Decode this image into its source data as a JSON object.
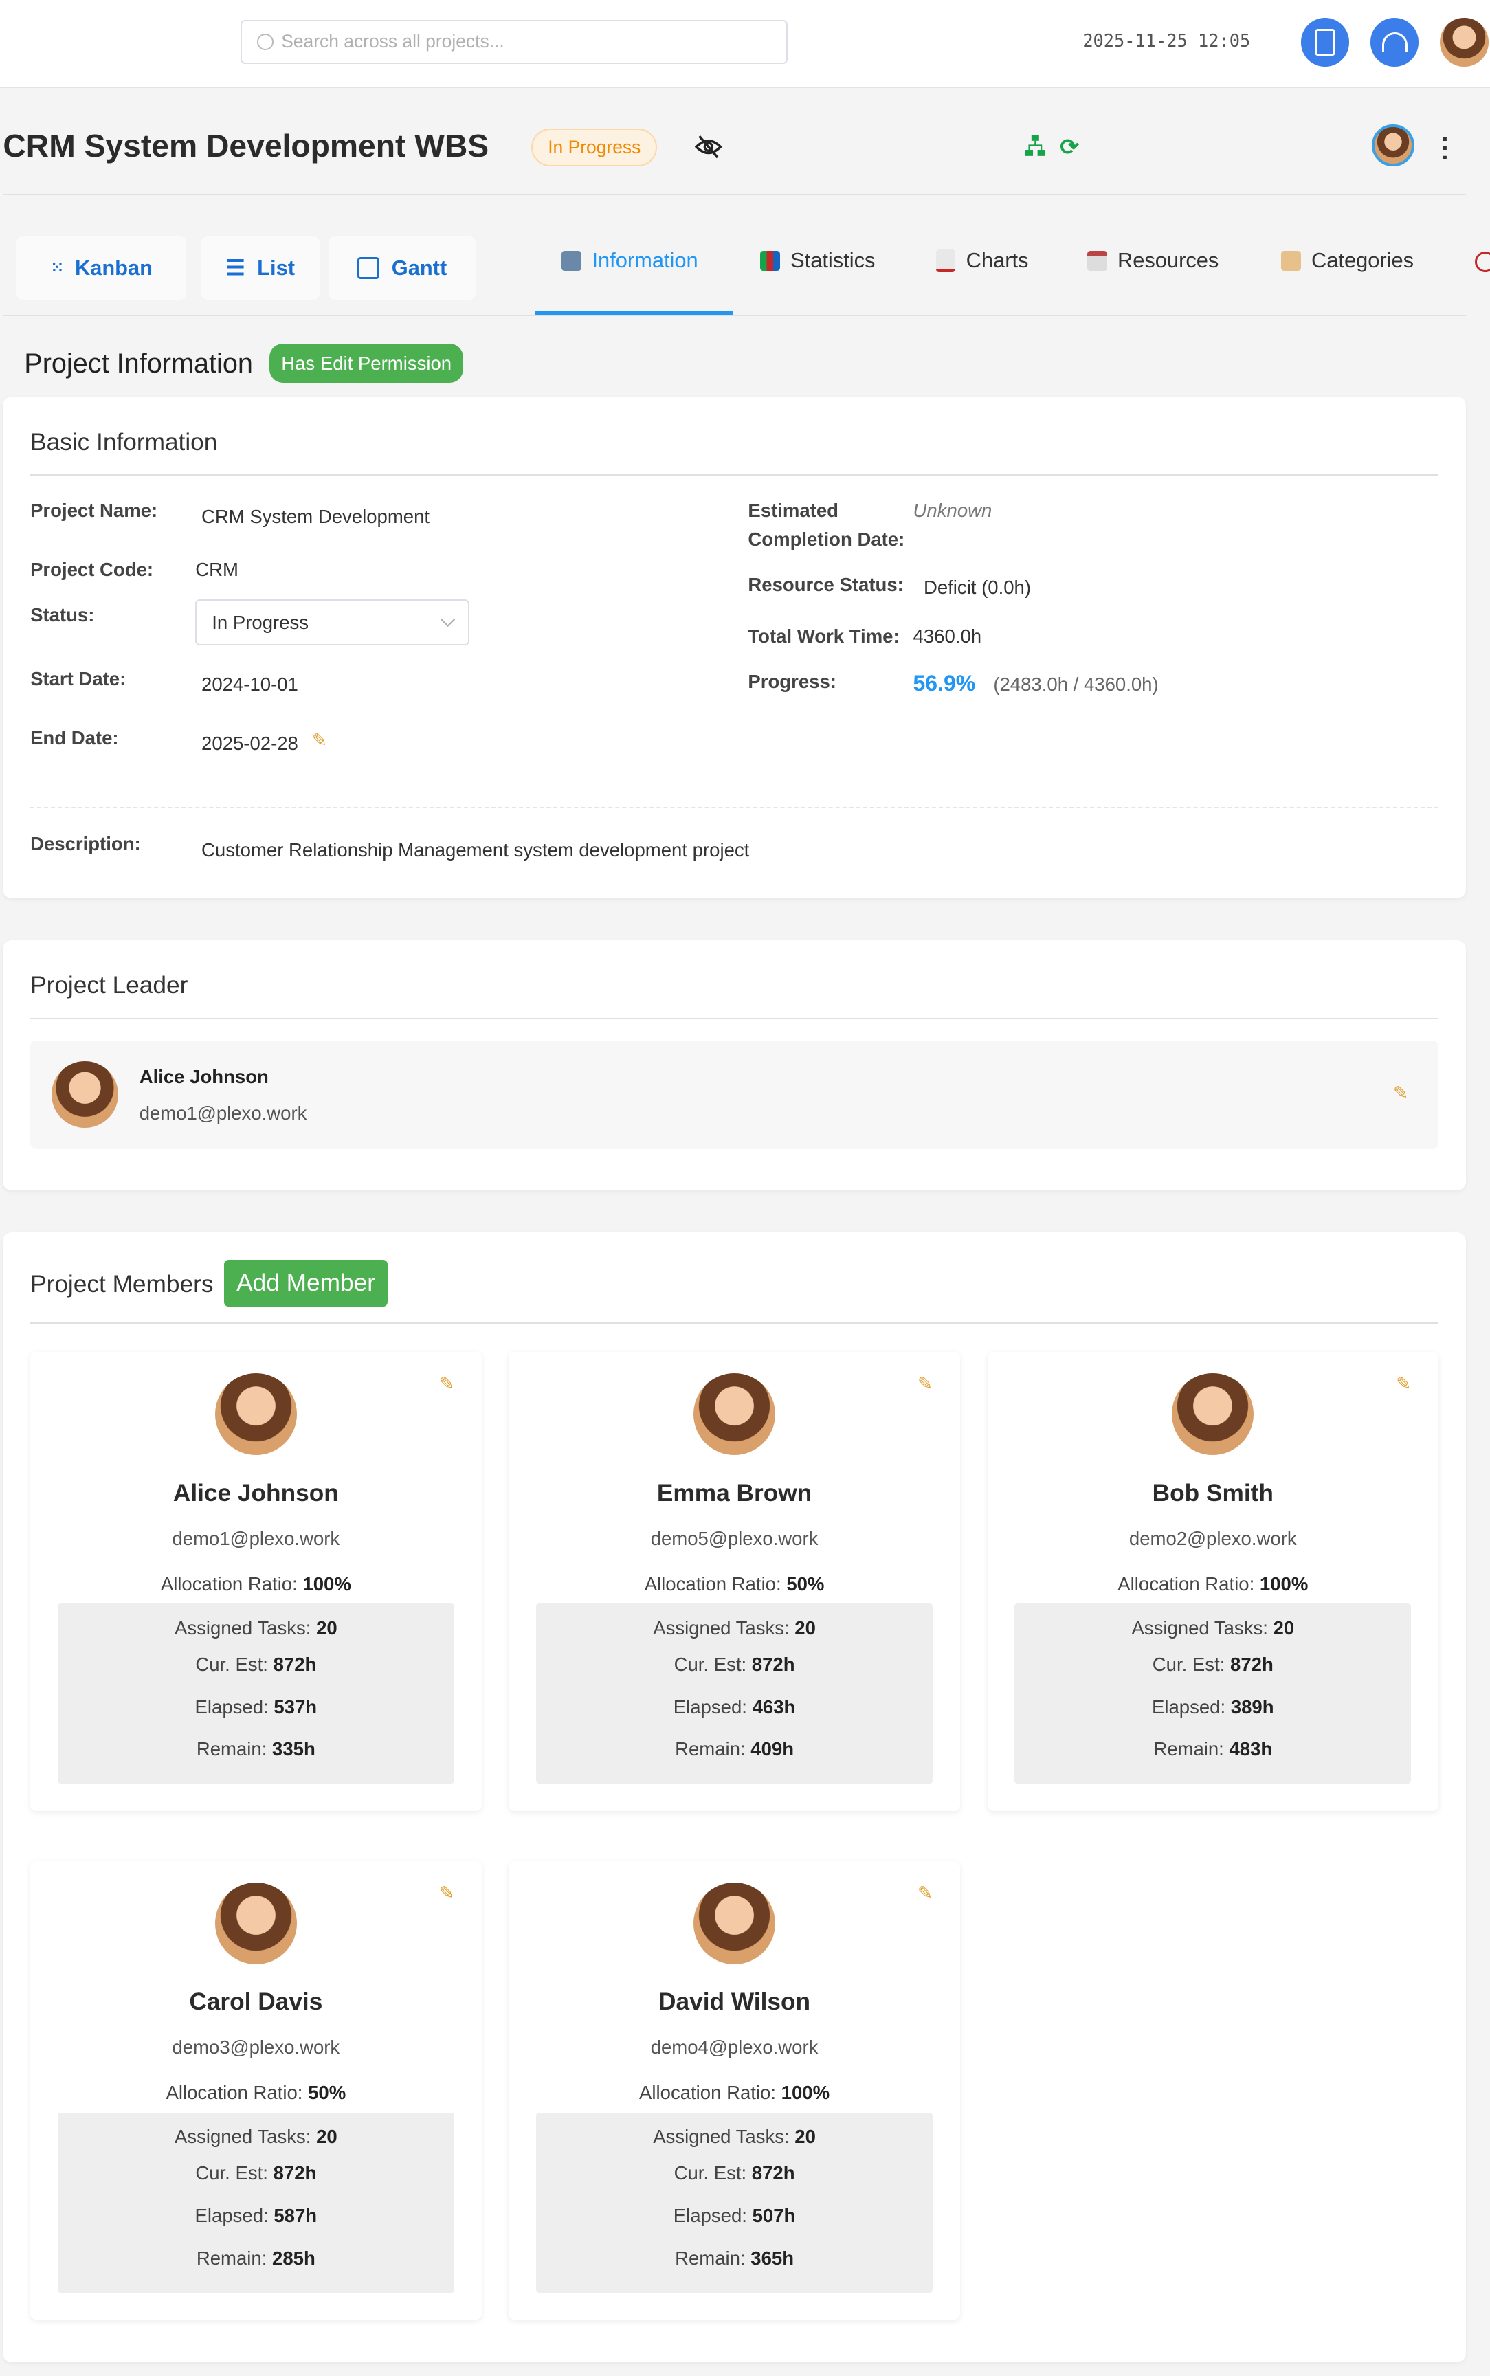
{
  "header": {
    "search_placeholder": "Search across all projects...",
    "datetime": "2025-11-25 12:05",
    "icons": [
      "search-icon",
      "book-icon",
      "headset-icon",
      "user-avatar"
    ],
    "accent_color": "#3b7de9"
  },
  "project": {
    "title": "CRM System Development WBS",
    "status_badge": "In Progress",
    "icons": [
      "eye-off-icon",
      "org-chart-icon",
      "refresh-icon",
      "leader-avatar",
      "more-vertical-icon"
    ]
  },
  "views": [
    {
      "label": "Kanban",
      "icon": "grid-dots-icon"
    },
    {
      "label": "List",
      "icon": "list-icon"
    },
    {
      "label": "Gantt",
      "icon": "calendar-icon"
    }
  ],
  "tabs": [
    {
      "label": "Information",
      "icon": "info-icon",
      "active": true
    },
    {
      "label": "Statistics",
      "icon": "bar-chart-icon"
    },
    {
      "label": "Charts",
      "icon": "line-chart-icon"
    },
    {
      "label": "Resources",
      "icon": "calendar-icon"
    },
    {
      "label": "Categories",
      "icon": "folder-icon"
    }
  ],
  "section": {
    "title": "Project Information",
    "permission_badge": "Has Edit Permission"
  },
  "basic": {
    "title": "Basic Information",
    "project_name_label": "Project Name:",
    "project_name": "CRM System Development",
    "project_code_label": "Project Code:",
    "project_code": "CRM",
    "status_label": "Status:",
    "status_value": "In Progress",
    "start_label": "Start Date:",
    "start_date": "2024-10-01",
    "end_label": "End Date:",
    "end_date": "2025-02-28",
    "est_label_1": "Estimated",
    "est_label_2": "Completion Date:",
    "est_value": "Unknown",
    "resource_label": "Resource Status:",
    "resource_value": "Deficit (0.0h)",
    "total_label": "Total Work Time:",
    "total_value": "4360.0h",
    "progress_label": "Progress:",
    "progress_value": "56.9%",
    "progress_detail": "(2483.0h / 4360.0h)",
    "description_label": "Description:",
    "description": "Customer Relationship Management system development project"
  },
  "leader": {
    "title": "Project Leader",
    "name": "Alice Johnson",
    "email": "demo1@plexo.work"
  },
  "members": {
    "title": "Project Members",
    "add_label": "Add Member",
    "alloc_label": "Allocation Ratio:",
    "tasks_label": "Assigned Tasks:",
    "est_label": "Cur. Est:",
    "elapsed_label": "Elapsed:",
    "remain_label": "Remain:",
    "list": [
      {
        "name": "Alice Johnson",
        "email": "demo1@plexo.work",
        "alloc": "100%",
        "tasks": "20",
        "est": "872h",
        "elapsed": "537h",
        "remain": "335h"
      },
      {
        "name": "Emma Brown",
        "email": "demo5@plexo.work",
        "alloc": "50%",
        "tasks": "20",
        "est": "872h",
        "elapsed": "463h",
        "remain": "409h"
      },
      {
        "name": "Bob Smith",
        "email": "demo2@plexo.work",
        "alloc": "100%",
        "tasks": "20",
        "est": "872h",
        "elapsed": "389h",
        "remain": "483h"
      },
      {
        "name": "Carol Davis",
        "email": "demo3@plexo.work",
        "alloc": "50%",
        "tasks": "20",
        "est": "872h",
        "elapsed": "587h",
        "remain": "285h"
      },
      {
        "name": "David Wilson",
        "email": "demo4@plexo.work",
        "alloc": "100%",
        "tasks": "20",
        "est": "872h",
        "elapsed": "507h",
        "remain": "365h"
      }
    ]
  }
}
